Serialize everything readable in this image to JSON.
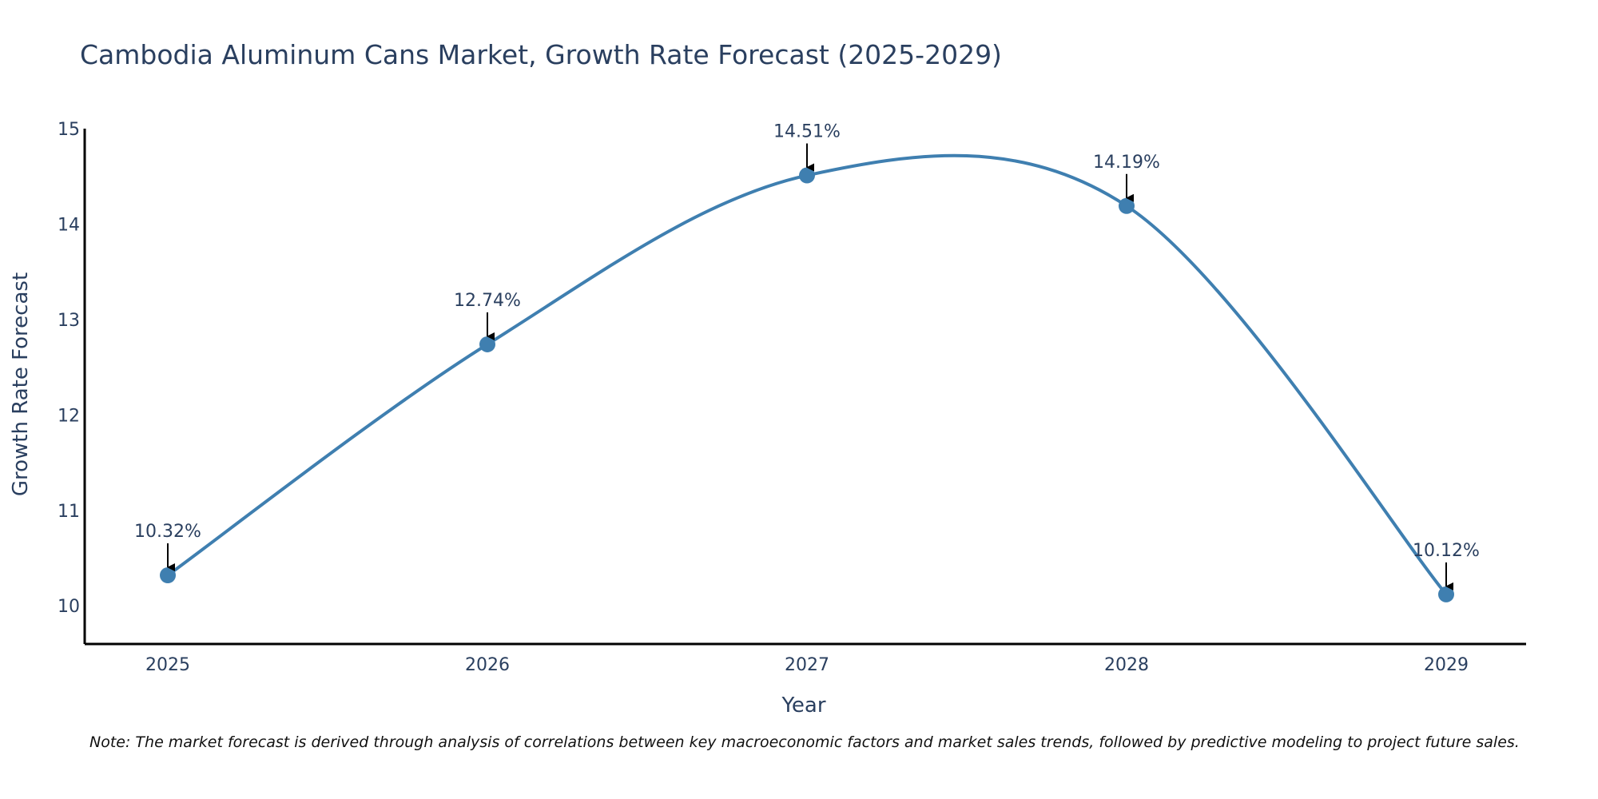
{
  "chart_data": {
    "type": "line",
    "title": "Cambodia Aluminum Cans Market, Growth Rate Forecast (2025-2029)",
    "xlabel": "Year",
    "ylabel": "Growth Rate Forecast",
    "categories": [
      "2025",
      "2026",
      "2027",
      "2028",
      "2029"
    ],
    "series": [
      {
        "name": "Growth Rate Forecast",
        "values": [
          10.32,
          12.74,
          14.51,
          14.19,
          10.12
        ],
        "color": "#3f7fb0"
      }
    ],
    "data_labels": [
      "10.32%",
      "12.74%",
      "14.51%",
      "14.19%",
      "10.12%"
    ],
    "ylim": [
      9.6,
      15.0
    ],
    "yticks": [
      10,
      11,
      12,
      13,
      14,
      15
    ],
    "grid": false,
    "line_shape": "spline"
  },
  "note": "Note: The market forecast is derived through analysis of correlations between key macroeconomic factors and market sales trends, followed by predictive modeling to project future sales."
}
